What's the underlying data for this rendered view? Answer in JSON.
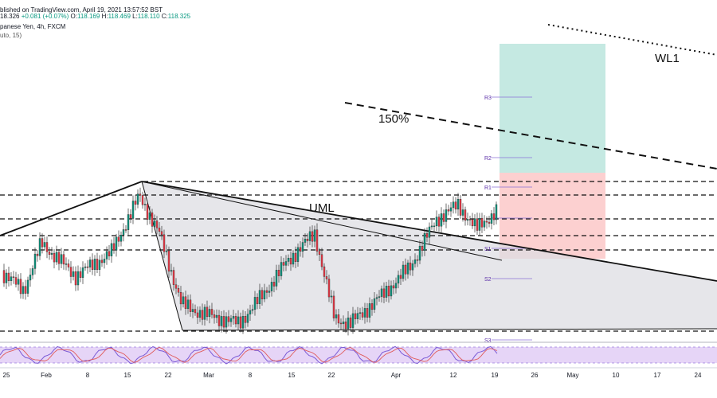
{
  "header": {
    "line1_prefix": "blished on TradingView.com, April 19, 2021 13:57:52 BST",
    "last_price": "18.326",
    "change": "+0.081 (+0.07%)",
    "open_label": "O:",
    "open": "118.169",
    "high_label": "H:",
    "high": "118.469",
    "low_label": "L:",
    "low": "118.110",
    "close_label": "C:",
    "close": "118.325",
    "symbol_line": "panese Yen, 4h, FXCM",
    "indicator_line": "uto, 15)"
  },
  "annotations": {
    "wl1": "WL1",
    "pct150": "150%",
    "uml": "UML"
  },
  "pivots": [
    "R3",
    "R2",
    "R1",
    "S1",
    "S2",
    "S3"
  ],
  "colors": {
    "up_candle": "#089981",
    "down_candle": "#f23645",
    "target_zone": "#c5e9e2",
    "stop_zone": "#fcd0d0",
    "pitchfork_fill": "#dddde3",
    "rsi_band": "#e6d5f7",
    "rsi_line": "#7b5ad6",
    "rsi_line2": "#e05b5b",
    "pivot": "#5b2fa8"
  },
  "chart_data": {
    "type": "candlestick",
    "symbol": "Japanese Yen, 4h, FXCM",
    "x_tick_labels": [
      "25",
      "Feb",
      "8",
      "15",
      "22",
      "Mar",
      "8",
      "15",
      "22",
      "Apr",
      "12",
      "19",
      "26",
      "May",
      "10",
      "17",
      "24"
    ],
    "series": [
      {
        "name": "price (approx. 4h closes)",
        "x": [
          "Jan 25",
          "Jan 29",
          "Feb 3",
          "Feb 8",
          "Feb 12",
          "Feb 17",
          "Feb 21",
          "Feb 25",
          "Mar 1",
          "Mar 5",
          "Mar 10",
          "Mar 15",
          "Mar 18",
          "Mar 22",
          "Mar 26",
          "Mar 31",
          "Apr 5",
          "Apr 9",
          "Apr 12",
          "Apr 15",
          "Apr 19"
        ],
        "values": [
          117.0,
          116.6,
          117.6,
          116.9,
          117.4,
          118.6,
          117.8,
          116.3,
          116.1,
          115.9,
          116.5,
          117.2,
          117.8,
          116.0,
          115.9,
          116.5,
          117.1,
          118.1,
          118.4,
          117.9,
          118.3
        ]
      }
    ],
    "last_candle": {
      "open": 118.169,
      "high": 118.469,
      "low": 118.11,
      "close": 118.325,
      "change": "+0.081 (+0.07%)"
    }
  }
}
